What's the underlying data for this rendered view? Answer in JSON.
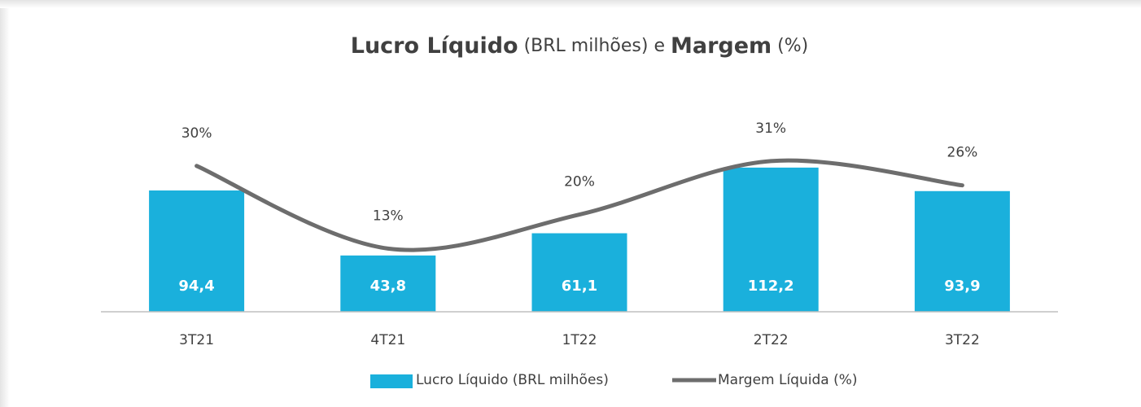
{
  "chart_data": {
    "type": "bar-line",
    "title": [
      "Lucro Líquido",
      "(BRL milhões) e",
      "Margem",
      "(%)"
    ],
    "categories": [
      "3T21",
      "4T21",
      "1T22",
      "2T22",
      "3T22"
    ],
    "series": [
      {
        "name": "Lucro Líquido (BRL milhões)",
        "type": "bar",
        "color": "#1ab0dc",
        "values": [
          94.4,
          43.8,
          61.1,
          112.2,
          93.9
        ],
        "value_labels": [
          "94,4",
          "43,8",
          "61,1",
          "112,2",
          "93,9"
        ]
      },
      {
        "name": "Margem Líquida (%)",
        "type": "line",
        "axis": "y2",
        "color": "#6d6d6d",
        "values": [
          30,
          13,
          20,
          31,
          26
        ],
        "value_labels": [
          "30%",
          "13%",
          "20%",
          "31%",
          "26%"
        ]
      }
    ],
    "ylim": [
      0,
      140
    ],
    "y2lim": [
      0,
      37
    ],
    "grid": false,
    "legend": "bottom"
  }
}
